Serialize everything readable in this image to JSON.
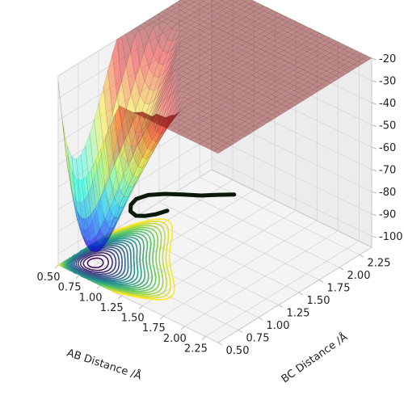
{
  "chart_data": {
    "type": "surface",
    "title": "",
    "xlabel": "AB Distance /Å",
    "ylabel": "BC Distance /Å",
    "zlabel": "",
    "x_ticks": [
      "0.50",
      "0.75",
      "1.00",
      "1.25",
      "1.50",
      "1.75",
      "2.00",
      "2.25"
    ],
    "y_ticks": [
      "0.50",
      "0.75",
      "1.00",
      "1.25",
      "1.50",
      "1.75",
      "2.00",
      "2.25"
    ],
    "z_ticks": [
      "-20",
      "-30",
      "-40",
      "-50",
      "-60",
      "-70",
      "-80",
      "-90",
      "-100"
    ],
    "xlim": [
      0.5,
      2.4
    ],
    "ylim": [
      0.5,
      2.4
    ],
    "zlim": [
      -105,
      -20
    ],
    "grid": true,
    "colormap": "jet surface with viridis contours on floor",
    "colors": {
      "pane": "#f2f2f2",
      "pane_right": "#ececec",
      "grid": "#d6d6d6",
      "trajectory": "#0a1a0a"
    },
    "surface": {
      "description_level": "LEPS-like potential energy surface",
      "plateau_z": -20,
      "valley_min_z": -103
    },
    "contour_levels": 22,
    "trajectory": {
      "label": "",
      "points_xyz": [
        [
          0.74,
          1.6,
          -101
        ],
        [
          0.75,
          1.45,
          -99
        ],
        [
          0.77,
          1.3,
          -96
        ],
        [
          0.8,
          1.15,
          -92
        ],
        [
          0.86,
          1.02,
          -86
        ],
        [
          0.96,
          0.92,
          -79
        ],
        [
          1.1,
          0.84,
          -72
        ],
        [
          1.28,
          0.8,
          -66
        ],
        [
          1.5,
          0.78,
          -61
        ],
        [
          1.72,
          0.77,
          -57
        ],
        [
          1.95,
          0.76,
          -53
        ],
        [
          2.15,
          0.76,
          -49
        ],
        [
          2.35,
          0.75,
          -45
        ]
      ]
    }
  }
}
